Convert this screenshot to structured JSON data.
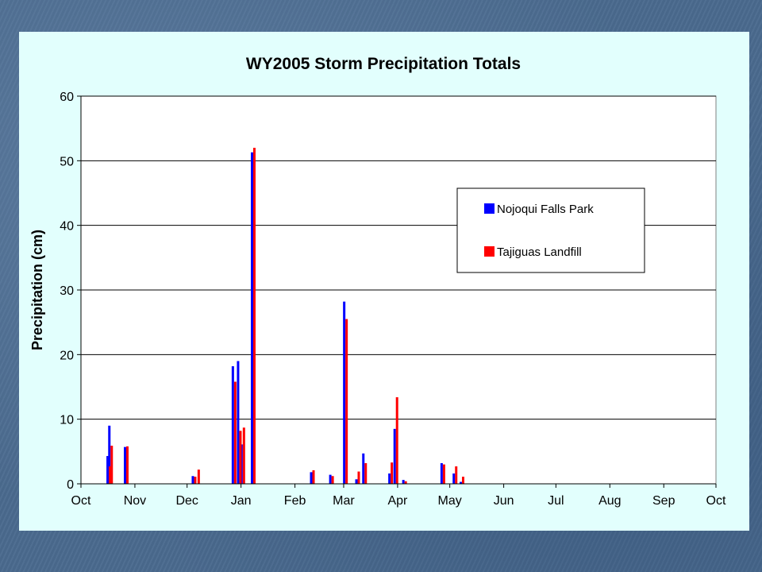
{
  "colors": {
    "background": "#4a6a8e",
    "panel": "#e2fffd",
    "plot_area": "#ffffff",
    "series_nojoqui": "#0000ff",
    "series_tajiguas": "#ff0000"
  },
  "chart_data": {
    "type": "bar",
    "title": "WY2005 Storm Precipitation Totals",
    "xlabel": "",
    "ylabel": "Precipitation (cm)",
    "ylim": [
      0,
      60
    ],
    "yticks": [
      0,
      10,
      20,
      30,
      40,
      50,
      60
    ],
    "x_axis": {
      "kind": "date",
      "min": "2004-10-01",
      "max": "2005-10-01",
      "tick_labels": [
        "Oct",
        "Nov",
        "Dec",
        "Jan",
        "Feb",
        "Mar",
        "Apr",
        "May",
        "Jun",
        "Jul",
        "Aug",
        "Sep",
        "Oct"
      ]
    },
    "grid": "horizontal major gridlines",
    "legend_position": "right",
    "series": [
      {
        "name": "Nojoqui Falls Park",
        "color": "#0000ff",
        "points": [
          {
            "date": "2004-10-17",
            "value": 4.3
          },
          {
            "date": "2004-10-18",
            "value": 9.0
          },
          {
            "date": "2004-10-27",
            "value": 5.7
          },
          {
            "date": "2004-12-05",
            "value": 1.2
          },
          {
            "date": "2004-12-28",
            "value": 18.2
          },
          {
            "date": "2004-12-31",
            "value": 19.0
          },
          {
            "date": "2005-01-02",
            "value": 6.1
          },
          {
            "date": "2005-01-08",
            "value": 51.3
          },
          {
            "date": "2005-02-11",
            "value": 1.8
          },
          {
            "date": "2005-02-22",
            "value": 1.4
          },
          {
            "date": "2005-03-02",
            "value": 28.2
          },
          {
            "date": "2005-03-09",
            "value": 0.7
          },
          {
            "date": "2005-03-13",
            "value": 4.7
          },
          {
            "date": "2005-03-28",
            "value": 1.6
          },
          {
            "date": "2005-03-31",
            "value": 8.5
          },
          {
            "date": "2005-04-05",
            "value": 0.6
          },
          {
            "date": "2005-04-27",
            "value": 3.2
          },
          {
            "date": "2005-05-04",
            "value": 1.6
          },
          {
            "date": "2005-05-08",
            "value": 0.3
          }
        ]
      },
      {
        "name": "Tajiguas Landfill",
        "color": "#ff0000",
        "points": [
          {
            "date": "2004-10-17",
            "value": 2.7
          },
          {
            "date": "2004-10-18",
            "value": 5.9
          },
          {
            "date": "2004-10-27",
            "value": 5.8
          },
          {
            "date": "2004-12-05",
            "value": 1.1
          },
          {
            "date": "2004-12-07",
            "value": 2.2
          },
          {
            "date": "2004-12-28",
            "value": 15.8
          },
          {
            "date": "2004-12-31",
            "value": 8.2
          },
          {
            "date": "2005-01-02",
            "value": 8.7
          },
          {
            "date": "2005-01-08",
            "value": 52.0
          },
          {
            "date": "2005-02-11",
            "value": 2.1
          },
          {
            "date": "2005-02-22",
            "value": 1.2
          },
          {
            "date": "2005-03-02",
            "value": 25.5
          },
          {
            "date": "2005-03-09",
            "value": 1.9
          },
          {
            "date": "2005-03-13",
            "value": 3.2
          },
          {
            "date": "2005-03-28",
            "value": 3.3
          },
          {
            "date": "2005-03-31",
            "value": 13.4
          },
          {
            "date": "2005-04-05",
            "value": 0.4
          },
          {
            "date": "2005-04-27",
            "value": 3.0
          },
          {
            "date": "2005-05-04",
            "value": 2.7
          },
          {
            "date": "2005-05-08",
            "value": 1.1
          }
        ]
      }
    ]
  }
}
